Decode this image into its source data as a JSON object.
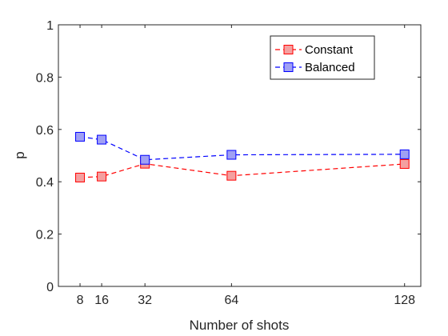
{
  "chart_data": {
    "type": "line",
    "title": "",
    "xlabel": "Number of shots",
    "ylabel": "p",
    "xlim": [
      0,
      134
    ],
    "ylim": [
      0,
      1
    ],
    "x_ticks": [
      8,
      16,
      32,
      64,
      128
    ],
    "x_tick_labels": [
      "8",
      "16",
      "32",
      "64",
      "128"
    ],
    "y_ticks": [
      0,
      0.2,
      0.4,
      0.6,
      0.8,
      1
    ],
    "y_tick_labels": [
      "0",
      "0.2",
      "0.4",
      "0.6",
      "0.8",
      "1"
    ],
    "grid": false,
    "legend_position": "top-right",
    "x": [
      8,
      16,
      32,
      64,
      128
    ],
    "series": [
      {
        "name": "Constant",
        "values": [
          0.416,
          0.42,
          0.469,
          0.423,
          0.468
        ],
        "color": "#ff0000",
        "marker_fill": "#f4a0a0",
        "line_style": "dashed",
        "marker": "square"
      },
      {
        "name": "Balanced",
        "values": [
          0.572,
          0.561,
          0.484,
          0.503,
          0.505
        ],
        "color": "#0000ff",
        "marker_fill": "#a0a0f4",
        "line_style": "dashed",
        "marker": "square"
      }
    ]
  }
}
